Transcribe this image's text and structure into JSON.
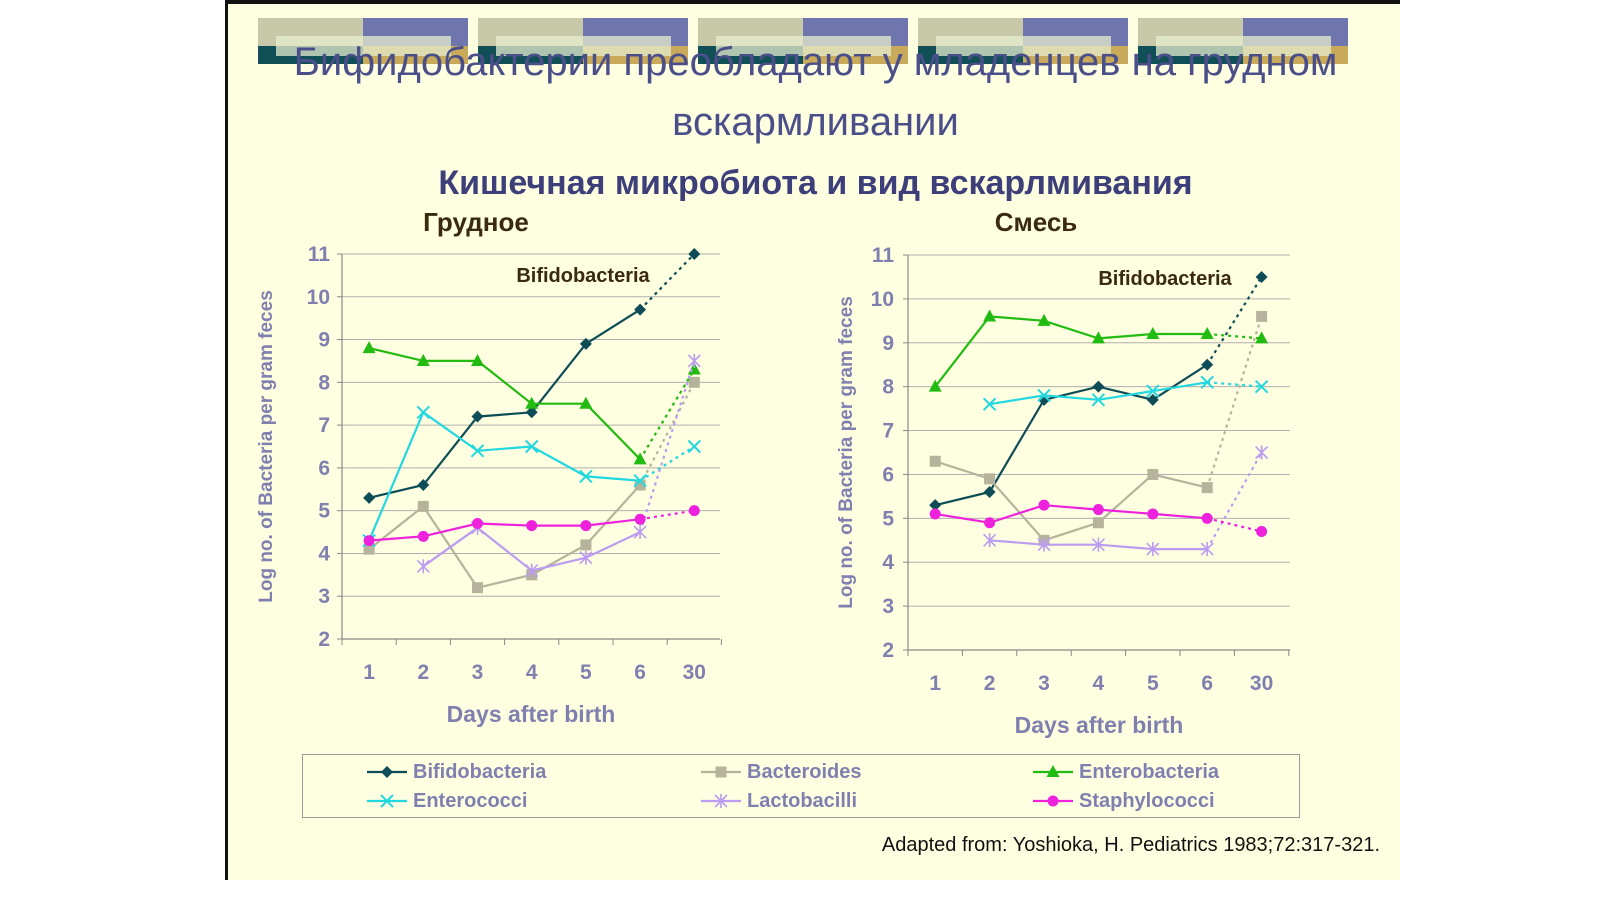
{
  "slide": {
    "title": "Бифидобактерии преобладают у младенцев на грудном вскармливании",
    "subtitle": "Кишечная микробиота и вид вскарлмивания",
    "citation": "Adapted from: Yoshioka, H. Pediatrics 1983;72:317-321."
  },
  "colors": {
    "Bifidobacteria": "#0e4d57",
    "Bacteroides": "#b5b39c",
    "Enterobacteria": "#22bb11",
    "Enterococci": "#22d8e0",
    "Lactobacilli": "#bb9cf0",
    "Staphylococci": "#ee22dd"
  },
  "legend": [
    {
      "name": "Bifidobacteria",
      "marker": "diamond"
    },
    {
      "name": "Bacteroides",
      "marker": "square"
    },
    {
      "name": "Enterobacteria",
      "marker": "triangle"
    },
    {
      "name": "Enterococci",
      "marker": "x"
    },
    {
      "name": "Lactobacilli",
      "marker": "star"
    },
    {
      "name": "Staphylococci",
      "marker": "circle"
    }
  ],
  "chart_data": [
    {
      "type": "line",
      "title": "Грудное",
      "annotation": "Bifidobacteria",
      "xlabel": "Days after birth",
      "ylabel": "Log no. of Bacteria per gram feces",
      "categories": [
        "1",
        "2",
        "3",
        "4",
        "5",
        "6",
        "30"
      ],
      "ylim": [
        2,
        11
      ],
      "yticks": [
        "2",
        "3",
        "4",
        "5",
        "6",
        "7",
        "8",
        "9",
        "10",
        "11"
      ],
      "grid": true,
      "last_segment_dotted": true,
      "series": [
        {
          "name": "Bifidobacteria",
          "values": [
            5.3,
            5.6,
            7.2,
            7.3,
            8.9,
            9.7,
            11.0
          ]
        },
        {
          "name": "Bacteroides",
          "values": [
            4.1,
            5.1,
            3.2,
            3.5,
            4.2,
            5.6,
            8.0
          ]
        },
        {
          "name": "Enterobacteria",
          "values": [
            8.8,
            8.5,
            8.5,
            7.5,
            7.5,
            6.2,
            8.3
          ]
        },
        {
          "name": "Enterococci",
          "values": [
            4.3,
            7.3,
            6.4,
            6.5,
            5.8,
            5.7,
            6.5
          ]
        },
        {
          "name": "Lactobacilli",
          "values": [
            null,
            3.7,
            4.6,
            3.6,
            3.9,
            4.5,
            8.5
          ]
        },
        {
          "name": "Staphylococci",
          "values": [
            4.3,
            4.4,
            4.7,
            4.65,
            4.65,
            4.8,
            5.0
          ]
        }
      ]
    },
    {
      "type": "line",
      "title": "Смесь",
      "annotation": "Bifidobacteria",
      "xlabel": "Days after birth",
      "ylabel": "Log no. of Bacteria per gram feces",
      "categories": [
        "1",
        "2",
        "3",
        "4",
        "5",
        "6",
        "30"
      ],
      "ylim": [
        2,
        11
      ],
      "yticks": [
        "2",
        "3",
        "4",
        "5",
        "6",
        "7",
        "8",
        "9",
        "10",
        "11"
      ],
      "grid": true,
      "last_segment_dotted": true,
      "series": [
        {
          "name": "Bifidobacteria",
          "values": [
            5.3,
            5.6,
            7.7,
            8.0,
            7.7,
            8.5,
            10.5
          ]
        },
        {
          "name": "Bacteroides",
          "values": [
            6.3,
            5.9,
            4.5,
            4.9,
            6.0,
            5.7,
            9.6
          ]
        },
        {
          "name": "Enterobacteria",
          "values": [
            8.0,
            9.6,
            9.5,
            9.1,
            9.2,
            9.2,
            9.1
          ]
        },
        {
          "name": "Enterococci",
          "values": [
            null,
            7.6,
            7.8,
            7.7,
            7.9,
            8.1,
            8.0
          ]
        },
        {
          "name": "Lactobacilli",
          "values": [
            null,
            4.5,
            4.4,
            4.4,
            4.3,
            4.3,
            6.5
          ]
        },
        {
          "name": "Staphylococci",
          "values": [
            5.1,
            4.9,
            5.3,
            5.2,
            5.1,
            5.0,
            4.7
          ]
        }
      ]
    }
  ]
}
